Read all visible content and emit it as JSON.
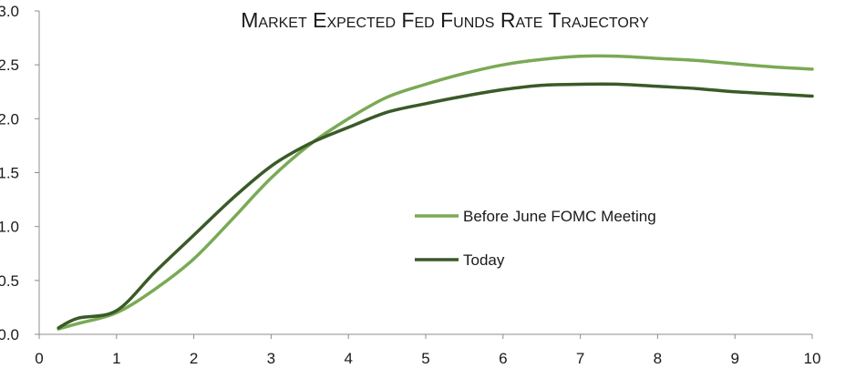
{
  "chart_data": {
    "type": "line",
    "title": "Market Expected Fed Funds Rate Trajectory",
    "xlabel": "",
    "ylabel": "",
    "xlim": [
      0,
      10
    ],
    "ylim": [
      0,
      3
    ],
    "x_ticks": [
      0,
      1,
      2,
      3,
      4,
      5,
      6,
      7,
      8,
      9,
      10
    ],
    "y_ticks": [
      "0.0",
      "0.5",
      "1.0",
      "1.5",
      "2.0",
      "2.5",
      "3.0"
    ],
    "grid": false,
    "legend_position": "center-right",
    "series": [
      {
        "name": "Before June FOMC Meeting",
        "color": "#7aaa55",
        "x": [
          0.25,
          0.5,
          1.0,
          1.5,
          2.0,
          2.5,
          3.0,
          3.5,
          4.0,
          4.5,
          5.0,
          5.5,
          6.0,
          6.5,
          7.0,
          7.5,
          8.0,
          8.5,
          9.0,
          9.5,
          10.0
        ],
        "y": [
          0.05,
          0.1,
          0.2,
          0.42,
          0.7,
          1.07,
          1.45,
          1.76,
          2.0,
          2.2,
          2.32,
          2.42,
          2.5,
          2.55,
          2.58,
          2.58,
          2.56,
          2.54,
          2.51,
          2.48,
          2.46
        ]
      },
      {
        "name": "Today",
        "color": "#3a5a28",
        "x": [
          0.25,
          0.5,
          1.0,
          1.5,
          2.0,
          2.5,
          3.0,
          3.5,
          4.0,
          4.5,
          5.0,
          5.5,
          6.0,
          6.5,
          7.0,
          7.5,
          8.0,
          8.5,
          9.0,
          9.5,
          10.0
        ],
        "y": [
          0.06,
          0.15,
          0.22,
          0.58,
          0.92,
          1.26,
          1.56,
          1.77,
          1.92,
          2.06,
          2.14,
          2.21,
          2.27,
          2.31,
          2.32,
          2.32,
          2.3,
          2.28,
          2.25,
          2.23,
          2.21
        ]
      }
    ]
  }
}
